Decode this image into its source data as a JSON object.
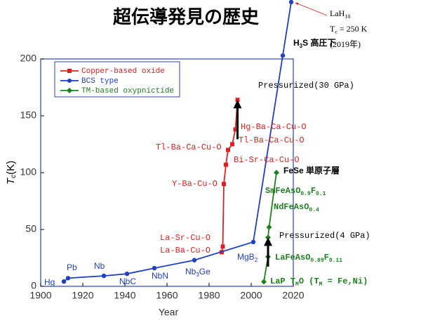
{
  "chart_data": {
    "type": "line",
    "title": "超伝導発見の歴史",
    "x_label": "Year",
    "y_label": [
      "T",
      "c",
      "(K)"
    ],
    "xlim": [
      1900,
      2020
    ],
    "xticks": [
      1900,
      1920,
      1940,
      1960,
      1980,
      2000,
      2020
    ],
    "ylim": [
      0,
      200
    ],
    "yticks": [
      0,
      50,
      100,
      150,
      200
    ],
    "series": [
      {
        "name": "Copper-based oxide",
        "color": "#e02020",
        "marker": "square",
        "x": [
          1986,
          1986.5,
          1987,
          1988,
          1989,
          1991,
          1992.5,
          1993.5
        ],
        "values": [
          30,
          35,
          90,
          107,
          120,
          125,
          138,
          164
        ]
      },
      {
        "name": "BCS type",
        "color": "#2040c0",
        "marker": "circle",
        "x": [
          1911,
          1913,
          1930,
          1941,
          1954,
          1973,
          2001,
          2015,
          2019
        ],
        "values": [
          4.2,
          7.2,
          9.2,
          11,
          16,
          23,
          39,
          203,
          250
        ]
      },
      {
        "name": "TM-based oxypnictide",
        "color": "#208020",
        "marker": "diamond",
        "x": [
          2006,
          2008,
          2008,
          2008.5,
          2012
        ],
        "values": [
          4,
          26,
          43,
          52,
          100
        ]
      }
    ],
    "annotations": [
      {
        "parts": [
          "Hg"
        ],
        "color": "#2040c0"
      },
      {
        "parts": [
          "Pb"
        ],
        "color": "#2040c0"
      },
      {
        "parts": [
          "Nb"
        ],
        "color": "#2040c0"
      },
      {
        "parts": [
          "NbC"
        ],
        "color": "#2040c0"
      },
      {
        "parts": [
          "NbN"
        ],
        "color": "#2040c0"
      },
      {
        "parts": [
          "Nb",
          "3",
          "Ge"
        ],
        "color": "#2040c0"
      },
      {
        "parts": [
          "MgB",
          "2"
        ],
        "color": "#2040c0"
      },
      {
        "parts": [
          "La-Sr-Cu-O"
        ],
        "color": "#e02020"
      },
      {
        "parts": [
          "La-Ba-Cu-O"
        ],
        "color": "#e02020"
      },
      {
        "parts": [
          "Y-Ba-Cu-O"
        ],
        "color": "#e02020"
      },
      {
        "parts": [
          "Tl-Ba-Ca-Cu-O"
        ],
        "color": "#e02020"
      },
      {
        "parts": [
          "Bi-Sr-Ca-Cu-O"
        ],
        "color": "#e02020"
      },
      {
        "parts": [
          "Tl-Ba-Ca-Cu-O"
        ],
        "color": "#e02020"
      },
      {
        "parts": [
          "Hg-Ba-Ca-Cu-O"
        ],
        "color": "#e02020"
      },
      {
        "parts": [
          "Pressurized(30 GPa)"
        ],
        "color": "#000000"
      },
      {
        "parts": [
          "H",
          "3",
          "S 高圧下"
        ],
        "color": "#000000"
      },
      {
        "parts": [
          "LaH",
          "10"
        ],
        "color": "#000000"
      },
      {
        "parts": [
          "T",
          "c",
          " = 250 K"
        ],
        "color": "#000000"
      },
      {
        "parts": [
          "(2019年)"
        ],
        "color": "#000000"
      },
      {
        "parts": [
          "FeSe 単原子層"
        ],
        "color": "#000000"
      },
      {
        "parts": [
          "SmFeAsO",
          "0.9",
          "F",
          "0.1"
        ],
        "color": "#208020"
      },
      {
        "parts": [
          "NdFeAsO",
          "0.4"
        ],
        "color": "#208020"
      },
      {
        "parts": [
          "Pressurized(4 GPa)"
        ],
        "color": "#000000"
      },
      {
        "parts": [
          "LaFeAsO",
          "0.89",
          "F",
          "0.11"
        ],
        "color": "#208020"
      },
      {
        "parts": [
          "LaP T",
          "M",
          "O (T",
          "M",
          " = Fe,Ni)"
        ],
        "color": "#208020"
      }
    ]
  }
}
